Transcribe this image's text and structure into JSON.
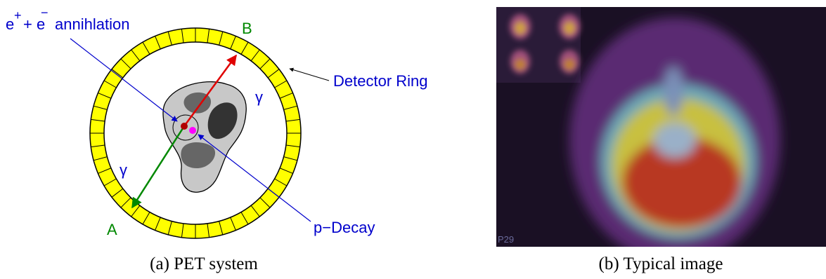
{
  "diagram": {
    "labels": {
      "annihilation": {
        "e1": "e",
        "sup1": "+",
        "mid": "+ e",
        "sup2": "−",
        "rest": "annihlation"
      },
      "point_b": "B",
      "detector_ring": "Detector Ring",
      "gamma_upper": "γ",
      "gamma_lower": "γ",
      "point_a": "A",
      "p_decay": "p−Decay"
    },
    "image_label": "P29",
    "captions": {
      "a": "(a) PET system",
      "b": "(b) Typical image"
    }
  }
}
